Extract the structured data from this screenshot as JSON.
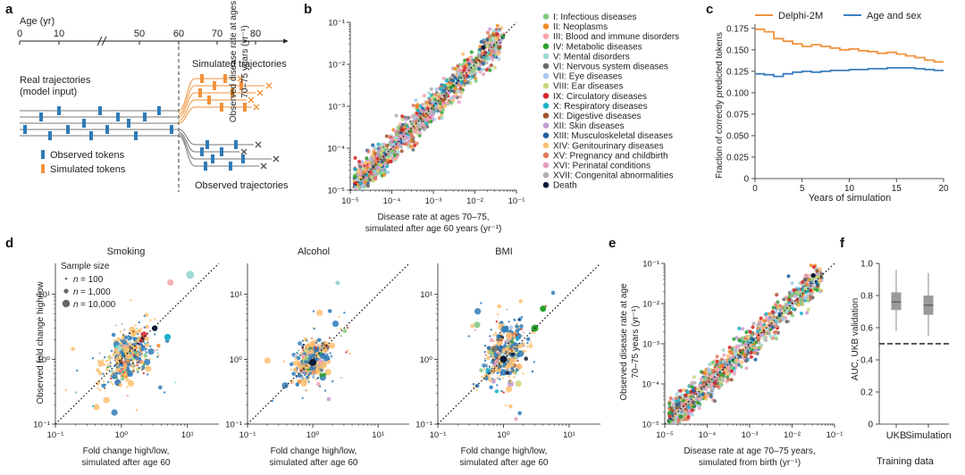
{
  "panel_labels": {
    "a": "a",
    "b": "b",
    "c": "c",
    "d": "d",
    "e": "e",
    "f": "f"
  },
  "colors": {
    "observed": "#2e7bb8",
    "simulated": "#f0923c",
    "delphi": "#f0923c",
    "age_sex": "#3a7ebf",
    "box": "#9a9a9a"
  },
  "panel_a": {
    "age_label": "Age (yr)",
    "ticks": [
      "0",
      "10",
      "50",
      "60",
      "70",
      "80"
    ],
    "simulated_label": "Simulated trajectories",
    "real_label_1": "Real trajectories",
    "real_label_2": "(model input)",
    "observed_tokens": "Observed tokens",
    "simulated_tokens": "Simulated tokens",
    "observed_trajectories": "Observed trajectories"
  },
  "legend": {
    "items": [
      {
        "label": "I: Infectious diseases",
        "color": "#7fc97f"
      },
      {
        "label": "II: Neoplasms",
        "color": "#f08a24"
      },
      {
        "label": "III: Blood and immune disorders",
        "color": "#f4a3a8"
      },
      {
        "label": "IV: Metabolic diseases",
        "color": "#2ca02c"
      },
      {
        "label": "V: Mental disorders",
        "color": "#9fd9d3"
      },
      {
        "label": "VI: Nervous system diseases",
        "color": "#6a6a6a"
      },
      {
        "label": "VII: Eye diseases",
        "color": "#a6c8ec"
      },
      {
        "label": "VIII: Ear diseases",
        "color": "#c9d97e"
      },
      {
        "label": "IX: Circulatory diseases",
        "color": "#d62728"
      },
      {
        "label": "X: Respiratory diseases",
        "color": "#17b3c8"
      },
      {
        "label": "XI: Digestive diseases",
        "color": "#a0522d"
      },
      {
        "label": "XII: Skin diseases",
        "color": "#c49ad6"
      },
      {
        "label": "XIII: Musculoskeletal diseases",
        "color": "#1f5f9e"
      },
      {
        "label": "XIV: Genitourinary diseases",
        "color": "#fdbf6f"
      },
      {
        "label": "XV: Pregnancy and childbirth",
        "color": "#e07a5f"
      },
      {
        "label": "XVI: Perinatal conditions",
        "color": "#e8a0c0"
      },
      {
        "label": "XVII: Congenital abnormalities",
        "color": "#b0b0b0"
      },
      {
        "label": "Death",
        "color": "#0d1a3a"
      }
    ]
  },
  "panel_d_legend": {
    "title": "Sample size",
    "n_prefix": "n",
    "entries": [
      "= 100",
      "= 1,000",
      "= 10,000"
    ]
  },
  "chart_data": [
    {
      "id": "b",
      "type": "scatter",
      "title": "",
      "xlabel_1": "Disease rate at ages 70–75,",
      "xlabel_2": "simulated after age 60 years (yr⁻¹)",
      "ylabel_1": "Observed disease rate at ages",
      "ylabel_2": "70–75 years (yr⁻¹)",
      "xscale": "log",
      "yscale": "log",
      "xlim": [
        1e-05,
        0.1
      ],
      "ylim": [
        1e-05,
        0.1
      ],
      "x_ticks": [
        "10⁻⁵",
        "10⁻⁴",
        "10⁻³",
        "10⁻²",
        "10⁻¹"
      ],
      "y_ticks": [
        "10⁻⁵",
        "10⁻⁴",
        "10⁻³",
        "10⁻²",
        "10⁻¹"
      ],
      "diagonal": true,
      "n_points": 1200
    },
    {
      "id": "c",
      "type": "line",
      "xlabel": "Years of simulation",
      "ylabel": "Fraction of correctly predicted tokens",
      "xlim": [
        0,
        20
      ],
      "ylim": [
        0,
        0.18
      ],
      "x_ticks": [
        "0",
        "5",
        "10",
        "15",
        "20"
      ],
      "y_ticks": [
        "0",
        "0.025",
        "0.050",
        "0.075",
        "0.100",
        "0.125",
        "0.150",
        "0.175"
      ],
      "series": [
        {
          "name": "Delphi-2M",
          "color": "#f0923c",
          "x": [
            0,
            1,
            2,
            3,
            4,
            5,
            6,
            7,
            8,
            9,
            10,
            11,
            12,
            13,
            14,
            15,
            16,
            17,
            18,
            19
          ],
          "y": [
            0.174,
            0.171,
            0.163,
            0.16,
            0.157,
            0.154,
            0.156,
            0.154,
            0.152,
            0.15,
            0.151,
            0.149,
            0.148,
            0.146,
            0.147,
            0.145,
            0.143,
            0.141,
            0.138,
            0.136
          ]
        },
        {
          "name": "Age and sex",
          "color": "#3a7ebf",
          "x": [
            0,
            1,
            2,
            3,
            4,
            5,
            6,
            7,
            8,
            9,
            10,
            11,
            12,
            13,
            14,
            15,
            16,
            17,
            18,
            19
          ],
          "y": [
            0.122,
            0.121,
            0.119,
            0.122,
            0.124,
            0.125,
            0.124,
            0.125,
            0.126,
            0.126,
            0.127,
            0.127,
            0.128,
            0.128,
            0.129,
            0.129,
            0.129,
            0.128,
            0.127,
            0.126
          ]
        }
      ]
    },
    {
      "id": "d-smoking",
      "type": "scatter",
      "title": "Smoking",
      "xlabel_1": "Fold change high/low,",
      "xlabel_2": "simulated after age 60",
      "ylabel": "Observed fold change high/low",
      "xscale": "log",
      "yscale": "log",
      "xlim": [
        0.1,
        30
      ],
      "ylim": [
        0.1,
        30
      ],
      "x_ticks": [
        "10⁻¹",
        "10⁰",
        "10¹"
      ],
      "y_ticks": [
        "10⁻¹",
        "10⁰",
        "10¹"
      ],
      "center": [
        1.2,
        1.1
      ],
      "spread": [
        0.17,
        0.18
      ],
      "n_points": 420,
      "diagonal": true
    },
    {
      "id": "d-alcohol",
      "type": "scatter",
      "title": "Alcohol",
      "xlabel_1": "Fold change high/low,",
      "xlabel_2": "simulated after age 60",
      "xscale": "log",
      "yscale": "log",
      "xlim": [
        0.1,
        30
      ],
      "ylim": [
        0.1,
        30
      ],
      "x_ticks": [
        "10⁻¹",
        "10⁰",
        "10¹"
      ],
      "y_ticks": [
        "10⁻¹",
        "10⁰",
        "10¹"
      ],
      "center": [
        0.95,
        0.95
      ],
      "spread": [
        0.12,
        0.15
      ],
      "n_points": 420,
      "diagonal": true
    },
    {
      "id": "d-bmi",
      "type": "scatter",
      "title": "BMI",
      "xlabel_1": "Fold change high/low,",
      "xlabel_2": "simulated after age 60",
      "xscale": "log",
      "yscale": "log",
      "xlim": [
        0.1,
        30
      ],
      "ylim": [
        0.1,
        30
      ],
      "x_ticks": [
        "10⁻¹",
        "10⁰",
        "10¹"
      ],
      "y_ticks": [
        "10⁻¹",
        "10⁰",
        "10¹"
      ],
      "center": [
        1.05,
        1.2
      ],
      "spread": [
        0.14,
        0.2
      ],
      "n_points": 420,
      "diagonal": true
    },
    {
      "id": "e",
      "type": "scatter",
      "xlabel_1": "Disease rate at age 70–75 years,",
      "xlabel_2": "simulated from birth (yr⁻¹)",
      "ylabel_1": "Observed disease rate at age",
      "ylabel_2": "70–75 years (yr⁻¹)",
      "xscale": "log",
      "yscale": "log",
      "xlim": [
        1e-05,
        0.1
      ],
      "ylim": [
        1e-05,
        0.1
      ],
      "x_ticks": [
        "10⁻⁵",
        "10⁻⁴",
        "10⁻³",
        "10⁻²",
        "10⁻¹"
      ],
      "y_ticks": [
        "10⁻⁵",
        "10⁻⁴",
        "10⁻³",
        "10⁻²",
        "10⁻¹"
      ],
      "diagonal": true,
      "n_points": 1100
    },
    {
      "id": "f",
      "type": "box",
      "xlabel": "Training data",
      "ylabel": "AUC, UKB validation",
      "ylim": [
        0,
        1
      ],
      "y_ticks": [
        "0",
        "0.2",
        "0.4",
        "0.6",
        "0.8",
        "1.0"
      ],
      "categories": [
        "UKB",
        "Simulation"
      ],
      "boxes": [
        {
          "min": 0.58,
          "q1": 0.71,
          "median": 0.76,
          "q3": 0.82,
          "max": 0.96
        },
        {
          "min": 0.55,
          "q1": 0.68,
          "median": 0.74,
          "q3": 0.8,
          "max": 0.94
        }
      ],
      "reference_line": 0.5
    }
  ]
}
